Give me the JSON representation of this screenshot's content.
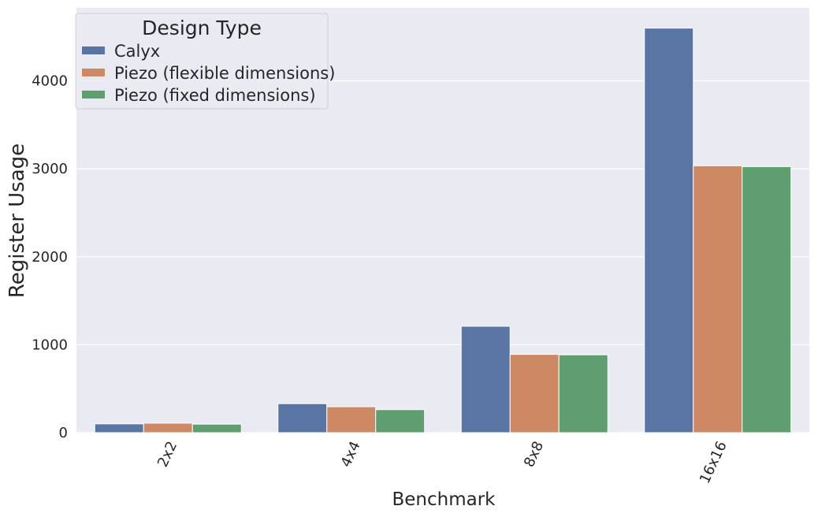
{
  "chart_data": {
    "type": "bar",
    "categories": [
      "2x2",
      "4x4",
      "8x8",
      "16x16"
    ],
    "series": [
      {
        "name": "Calyx",
        "color": "#5875a4",
        "values": [
          100,
          330,
          1210,
          4600
        ]
      },
      {
        "name": "Piezo (flexible dimensions)",
        "color": "#cc8963",
        "values": [
          108,
          295,
          890,
          3035
        ]
      },
      {
        "name": "Piezo (fixed dimensions)",
        "color": "#5f9e6e",
        "values": [
          97,
          262,
          885,
          3025
        ]
      }
    ],
    "xlabel": "Benchmark",
    "ylabel": "Register Usage",
    "yticks": [
      0,
      1000,
      2000,
      3000,
      4000
    ],
    "ylim": [
      0,
      4830
    ],
    "legend": {
      "title": "Design Type",
      "position": "top-left"
    },
    "grid": true,
    "background": "#eaeaf2"
  }
}
